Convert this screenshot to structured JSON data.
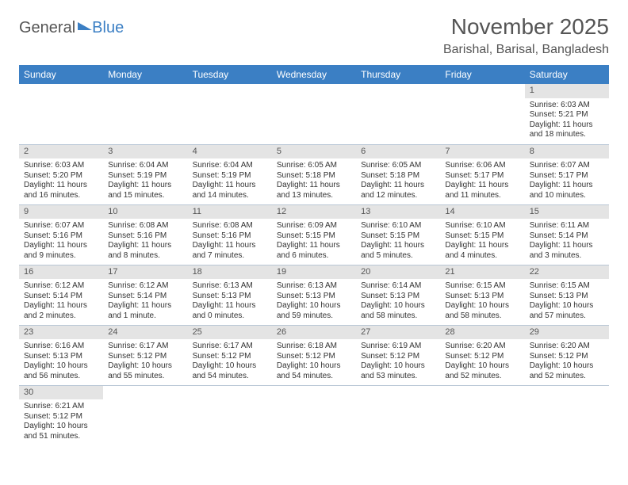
{
  "logo": {
    "text1": "General",
    "text2": "Blue"
  },
  "header": {
    "month_title": "November 2025",
    "location": "Barishal, Barisal, Bangladesh"
  },
  "colors": {
    "accent": "#3b7fc4",
    "daynum_bg": "#e4e4e4",
    "border": "#b9c7d6"
  },
  "weekdays": [
    "Sunday",
    "Monday",
    "Tuesday",
    "Wednesday",
    "Thursday",
    "Friday",
    "Saturday"
  ],
  "weeks": [
    [
      null,
      null,
      null,
      null,
      null,
      null,
      {
        "n": "1",
        "sunrise": "Sunrise: 6:03 AM",
        "sunset": "Sunset: 5:21 PM",
        "daylight": "Daylight: 11 hours and 18 minutes."
      }
    ],
    [
      {
        "n": "2",
        "sunrise": "Sunrise: 6:03 AM",
        "sunset": "Sunset: 5:20 PM",
        "daylight": "Daylight: 11 hours and 16 minutes."
      },
      {
        "n": "3",
        "sunrise": "Sunrise: 6:04 AM",
        "sunset": "Sunset: 5:19 PM",
        "daylight": "Daylight: 11 hours and 15 minutes."
      },
      {
        "n": "4",
        "sunrise": "Sunrise: 6:04 AM",
        "sunset": "Sunset: 5:19 PM",
        "daylight": "Daylight: 11 hours and 14 minutes."
      },
      {
        "n": "5",
        "sunrise": "Sunrise: 6:05 AM",
        "sunset": "Sunset: 5:18 PM",
        "daylight": "Daylight: 11 hours and 13 minutes."
      },
      {
        "n": "6",
        "sunrise": "Sunrise: 6:05 AM",
        "sunset": "Sunset: 5:18 PM",
        "daylight": "Daylight: 11 hours and 12 minutes."
      },
      {
        "n": "7",
        "sunrise": "Sunrise: 6:06 AM",
        "sunset": "Sunset: 5:17 PM",
        "daylight": "Daylight: 11 hours and 11 minutes."
      },
      {
        "n": "8",
        "sunrise": "Sunrise: 6:07 AM",
        "sunset": "Sunset: 5:17 PM",
        "daylight": "Daylight: 11 hours and 10 minutes."
      }
    ],
    [
      {
        "n": "9",
        "sunrise": "Sunrise: 6:07 AM",
        "sunset": "Sunset: 5:16 PM",
        "daylight": "Daylight: 11 hours and 9 minutes."
      },
      {
        "n": "10",
        "sunrise": "Sunrise: 6:08 AM",
        "sunset": "Sunset: 5:16 PM",
        "daylight": "Daylight: 11 hours and 8 minutes."
      },
      {
        "n": "11",
        "sunrise": "Sunrise: 6:08 AM",
        "sunset": "Sunset: 5:16 PM",
        "daylight": "Daylight: 11 hours and 7 minutes."
      },
      {
        "n": "12",
        "sunrise": "Sunrise: 6:09 AM",
        "sunset": "Sunset: 5:15 PM",
        "daylight": "Daylight: 11 hours and 6 minutes."
      },
      {
        "n": "13",
        "sunrise": "Sunrise: 6:10 AM",
        "sunset": "Sunset: 5:15 PM",
        "daylight": "Daylight: 11 hours and 5 minutes."
      },
      {
        "n": "14",
        "sunrise": "Sunrise: 6:10 AM",
        "sunset": "Sunset: 5:15 PM",
        "daylight": "Daylight: 11 hours and 4 minutes."
      },
      {
        "n": "15",
        "sunrise": "Sunrise: 6:11 AM",
        "sunset": "Sunset: 5:14 PM",
        "daylight": "Daylight: 11 hours and 3 minutes."
      }
    ],
    [
      {
        "n": "16",
        "sunrise": "Sunrise: 6:12 AM",
        "sunset": "Sunset: 5:14 PM",
        "daylight": "Daylight: 11 hours and 2 minutes."
      },
      {
        "n": "17",
        "sunrise": "Sunrise: 6:12 AM",
        "sunset": "Sunset: 5:14 PM",
        "daylight": "Daylight: 11 hours and 1 minute."
      },
      {
        "n": "18",
        "sunrise": "Sunrise: 6:13 AM",
        "sunset": "Sunset: 5:13 PM",
        "daylight": "Daylight: 11 hours and 0 minutes."
      },
      {
        "n": "19",
        "sunrise": "Sunrise: 6:13 AM",
        "sunset": "Sunset: 5:13 PM",
        "daylight": "Daylight: 10 hours and 59 minutes."
      },
      {
        "n": "20",
        "sunrise": "Sunrise: 6:14 AM",
        "sunset": "Sunset: 5:13 PM",
        "daylight": "Daylight: 10 hours and 58 minutes."
      },
      {
        "n": "21",
        "sunrise": "Sunrise: 6:15 AM",
        "sunset": "Sunset: 5:13 PM",
        "daylight": "Daylight: 10 hours and 58 minutes."
      },
      {
        "n": "22",
        "sunrise": "Sunrise: 6:15 AM",
        "sunset": "Sunset: 5:13 PM",
        "daylight": "Daylight: 10 hours and 57 minutes."
      }
    ],
    [
      {
        "n": "23",
        "sunrise": "Sunrise: 6:16 AM",
        "sunset": "Sunset: 5:13 PM",
        "daylight": "Daylight: 10 hours and 56 minutes."
      },
      {
        "n": "24",
        "sunrise": "Sunrise: 6:17 AM",
        "sunset": "Sunset: 5:12 PM",
        "daylight": "Daylight: 10 hours and 55 minutes."
      },
      {
        "n": "25",
        "sunrise": "Sunrise: 6:17 AM",
        "sunset": "Sunset: 5:12 PM",
        "daylight": "Daylight: 10 hours and 54 minutes."
      },
      {
        "n": "26",
        "sunrise": "Sunrise: 6:18 AM",
        "sunset": "Sunset: 5:12 PM",
        "daylight": "Daylight: 10 hours and 54 minutes."
      },
      {
        "n": "27",
        "sunrise": "Sunrise: 6:19 AM",
        "sunset": "Sunset: 5:12 PM",
        "daylight": "Daylight: 10 hours and 53 minutes."
      },
      {
        "n": "28",
        "sunrise": "Sunrise: 6:20 AM",
        "sunset": "Sunset: 5:12 PM",
        "daylight": "Daylight: 10 hours and 52 minutes."
      },
      {
        "n": "29",
        "sunrise": "Sunrise: 6:20 AM",
        "sunset": "Sunset: 5:12 PM",
        "daylight": "Daylight: 10 hours and 52 minutes."
      }
    ],
    [
      {
        "n": "30",
        "sunrise": "Sunrise: 6:21 AM",
        "sunset": "Sunset: 5:12 PM",
        "daylight": "Daylight: 10 hours and 51 minutes."
      },
      null,
      null,
      null,
      null,
      null,
      null
    ]
  ]
}
